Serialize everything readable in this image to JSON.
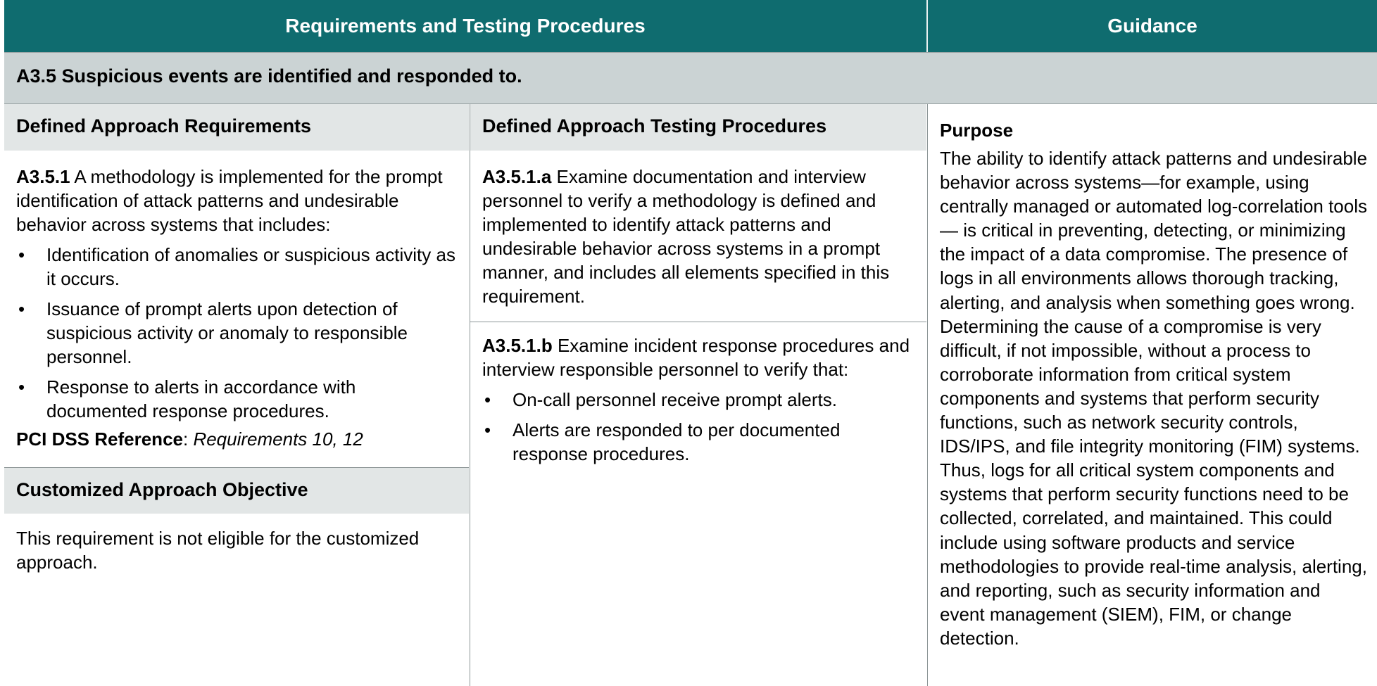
{
  "header": {
    "col1": "Requirements and Testing Procedures",
    "col2": "Guidance"
  },
  "section_title": "A3.5 Suspicious events are identified and responded to.",
  "requirements": {
    "heading": "Defined Approach Requirements",
    "id": "A3.5.1",
    "text": " A methodology is implemented for the prompt identification of attack patterns and undesirable behavior across systems that includes:",
    "bullets": [
      "Identification of anomalies or suspicious activity as it occurs.",
      "Issuance of prompt alerts upon detection of suspicious activity or anomaly to responsible personnel.",
      "Response to alerts in accordance with documented response procedures."
    ],
    "ref_label": "PCI DSS Reference",
    "ref_sep": ": ",
    "ref_value": "Requirements 10, 12"
  },
  "customized": {
    "heading": "Customized Approach Objective",
    "text": "This requirement is not eligible for the customized approach."
  },
  "testing": {
    "heading": "Defined Approach Testing Procedures",
    "a_id": "A3.5.1.a",
    "a_text": " Examine documentation and interview personnel to verify a methodology is defined and implemented to identify attack patterns and undesirable behavior across systems in a prompt manner, and includes all elements specified in this requirement.",
    "b_id": "A3.5.1.b",
    "b_text": " Examine incident response procedures and interview responsible personnel to verify that:",
    "b_bullets": [
      "On-call personnel receive prompt alerts.",
      "Alerts are responded to per documented response procedures."
    ]
  },
  "guidance": {
    "heading": "Purpose",
    "text": "The ability to identify attack patterns and undesirable behavior across systems—for example, using centrally managed or automated log-correlation tools— is critical in preventing, detecting, or minimizing the impact of a data compromise. The presence of logs in all environments allows thorough tracking, alerting, and analysis when something goes wrong. Determining the cause of a compromise is very difficult, if not impossible, without a process to corroborate information from critical system components and systems that perform security functions, such as network security controls, IDS/IPS, and file integrity monitoring (FIM) systems. Thus, logs for all critical system components and systems that perform security functions need to be collected, correlated, and maintained. This could include using software products and service methodologies to provide real-time analysis, alerting, and reporting, such as security information and event management (SIEM), FIM, or change detection."
  },
  "colors": {
    "header_bg": "#0f6c6f",
    "section_bg": "#cbd3d4",
    "subheader_bg": "#e2e6e6"
  }
}
